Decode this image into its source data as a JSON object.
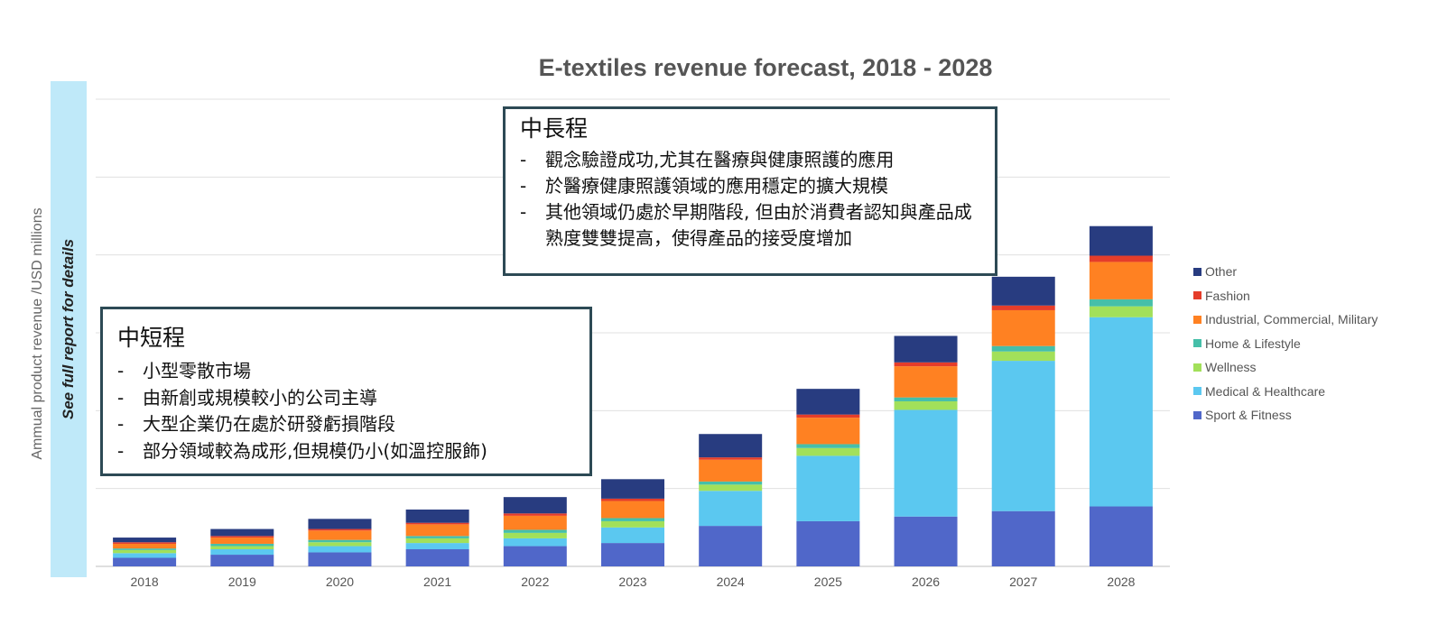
{
  "side_note": "See full report for details",
  "callout_long": {
    "title": "中長程",
    "bullets": [
      "觀念驗證成功,尤其在醫療與健康照護的應用",
      "於醫療健康照護領域的應用穩定的擴大規模",
      "其他領域仍處於早期階段, 但由於消費者認知與產品成熟度雙雙提高，使得產品的接受度增加"
    ]
  },
  "callout_short": {
    "title": "中短程",
    "bullets": [
      "小型零散市場",
      "由新創或規模較小的公司主導",
      "大型企業仍在處於研發虧損階段",
      "部分領域較為成形,但規模仍小(如溫控服飾)"
    ]
  },
  "chart_data": {
    "type": "bar",
    "stacked": true,
    "title": "E-textiles revenue forecast, 2018 - 2028",
    "xlabel": "",
    "ylabel": "Ammual product revenue /USD millions",
    "y_tick_labels_shown": false,
    "grid": true,
    "legend_position": "right",
    "note": "Values estimated in gridline units (6 equal intervals, unlabeled axis)",
    "ylim": [
      0,
      6
    ],
    "categories": [
      "2018",
      "2019",
      "2020",
      "2021",
      "2022",
      "2023",
      "2024",
      "2025",
      "2026",
      "2027",
      "2028"
    ],
    "series": [
      {
        "name": "Sport & Fitness",
        "color": "#5067c9",
        "values": [
          0.11,
          0.15,
          0.18,
          0.22,
          0.26,
          0.3,
          0.52,
          0.58,
          0.64,
          0.71,
          0.77
        ]
      },
      {
        "name": "Medical & Healthcare",
        "color": "#5bc8f0",
        "values": [
          0.06,
          0.07,
          0.08,
          0.08,
          0.1,
          0.2,
          0.45,
          0.84,
          1.37,
          1.93,
          2.43
        ]
      },
      {
        "name": "Wellness",
        "color": "#a2e05a",
        "values": [
          0.04,
          0.04,
          0.05,
          0.06,
          0.07,
          0.08,
          0.08,
          0.1,
          0.11,
          0.12,
          0.14
        ]
      },
      {
        "name": "Home & Lifestyle",
        "color": "#46bfa9",
        "values": [
          0.02,
          0.03,
          0.03,
          0.03,
          0.04,
          0.04,
          0.04,
          0.05,
          0.05,
          0.07,
          0.09
        ]
      },
      {
        "name": "Industrial, Commercial, Military",
        "color": "#ff8122",
        "values": [
          0.06,
          0.08,
          0.12,
          0.15,
          0.18,
          0.22,
          0.28,
          0.34,
          0.4,
          0.46,
          0.48
        ]
      },
      {
        "name": "Fashion",
        "color": "#e53d2a",
        "values": [
          0.02,
          0.02,
          0.02,
          0.02,
          0.03,
          0.03,
          0.03,
          0.04,
          0.05,
          0.06,
          0.08
        ]
      },
      {
        "name": "Other",
        "color": "#283c80",
        "values": [
          0.06,
          0.09,
          0.13,
          0.17,
          0.21,
          0.25,
          0.3,
          0.33,
          0.34,
          0.37,
          0.38
        ]
      }
    ]
  }
}
